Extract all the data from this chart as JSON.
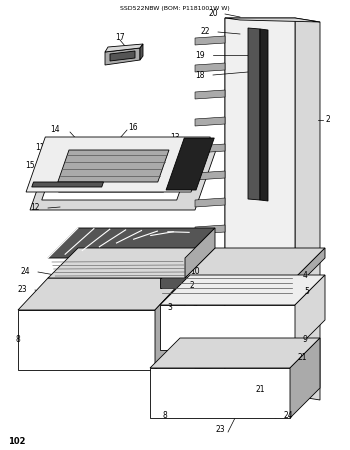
{
  "title": "SSD522NBW (BOM: P1181001W W)",
  "page_number": "102",
  "bg_color": "#ffffff",
  "lc": "#000000",
  "lw": 0.6,
  "gray_light": "#d8d8d8",
  "gray_mid": "#aaaaaa",
  "gray_dark": "#555555",
  "gray_black": "#222222"
}
